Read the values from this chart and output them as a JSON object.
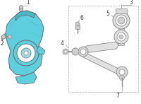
{
  "bg_color": "#ffffff",
  "knuckle_color": "#5ecfde",
  "knuckle_outline": "#666666",
  "part_outline": "#888888",
  "label_color": "#333333",
  "line_color": "#999999",
  "figsize": [
    2.0,
    1.47
  ],
  "dpi": 100
}
